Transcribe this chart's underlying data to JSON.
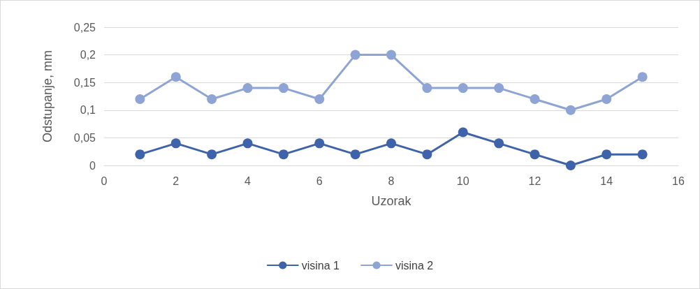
{
  "chart_data": {
    "type": "line",
    "xlabel": "Uzorak",
    "ylabel": "Odstupanje, mm",
    "x": [
      1,
      2,
      3,
      4,
      5,
      6,
      7,
      8,
      9,
      10,
      11,
      12,
      13,
      14,
      15
    ],
    "series": [
      {
        "name": "visina 1",
        "color": "#3f63ab",
        "values": [
          0.02,
          0.04,
          0.02,
          0.04,
          0.02,
          0.04,
          0.02,
          0.04,
          0.02,
          0.06,
          0.04,
          0.02,
          0,
          0.02,
          0.02
        ]
      },
      {
        "name": "visina 2",
        "color": "#8ea4d5",
        "values": [
          0.12,
          0.16,
          0.12,
          0.14,
          0.14,
          0.12,
          0.2,
          0.2,
          0.14,
          0.14,
          0.14,
          0.12,
          0.1,
          0.12,
          0.16
        ]
      }
    ],
    "xlim": [
      0,
      16
    ],
    "xticks": [
      0,
      2,
      4,
      6,
      8,
      10,
      12,
      14,
      16
    ],
    "ylim": [
      0,
      0.25
    ],
    "yticks": [
      {
        "value": 0,
        "label": "0"
      },
      {
        "value": 0.05,
        "label": "0,05"
      },
      {
        "value": 0.1,
        "label": "0,1"
      },
      {
        "value": 0.15,
        "label": "0,15"
      },
      {
        "value": 0.2,
        "label": "0,2"
      },
      {
        "value": 0.25,
        "label": "0,25"
      }
    ],
    "grid": "y",
    "legend": "bottom",
    "marker": "circle",
    "line_style": "solid"
  }
}
